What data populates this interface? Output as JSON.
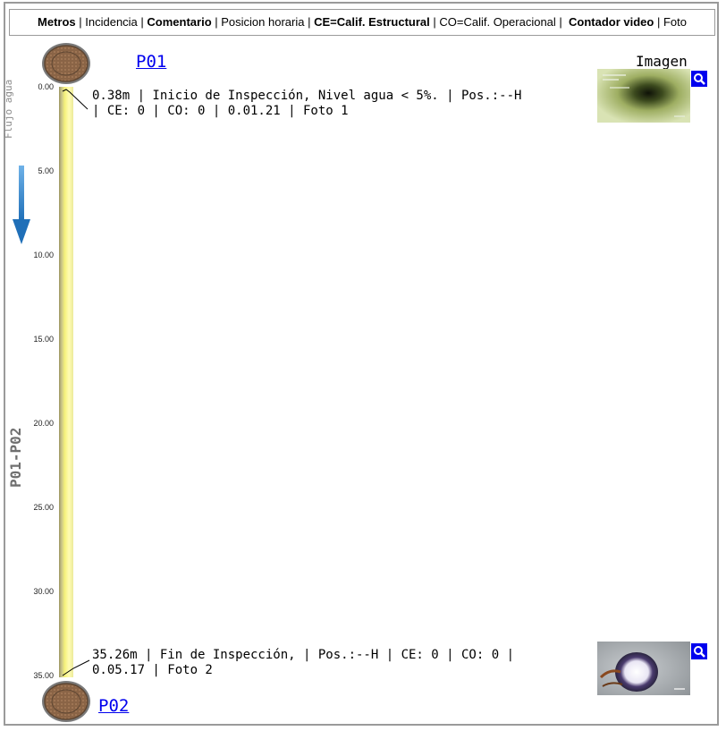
{
  "legend": {
    "metros": "Metros",
    "sep1": " | ",
    "incidencia": "Incidencia",
    "sep2": " | ",
    "comentario": "Comentario",
    "sep3": " | ",
    "posicion": "Posicion horaria",
    "sep4": " | ",
    "ce": "CE=Calif. Estructural",
    "sep5": " | ",
    "co": "CO=Calif. Operacional",
    "sep6": " |  ",
    "contador": "Contador video",
    "sep7": " | ",
    "foto": "Foto"
  },
  "imagen_header": "Imagen",
  "nodes": {
    "start": "P01",
    "end": "P02"
  },
  "flow_label": "Flujo agua",
  "pipe_label": "P01-P02",
  "scale_ticks": [
    "0.00",
    "5.00",
    "10.00",
    "15.00",
    "20.00",
    "25.00",
    "30.00",
    "35.00"
  ],
  "observations": [
    {
      "line1": "0.38m | Inicio de Inspección, Nivel agua < 5%. | Pos.:--H",
      "line2": "| CE: 0 | CO: 0 | 0.01.21 | Foto 1",
      "meters": 0.38
    },
    {
      "line1": "35.26m | Fin de Inspección, | Pos.:--H | CE: 0 | CO: 0 |",
      "line2": "0.05.17 | Foto 2",
      "meters": 35.26
    }
  ],
  "colors": {
    "link": "#0000ee",
    "pipe": "#f5f17a",
    "flow_arrow": "#2a7fc9",
    "zoom_button": "#0000ee"
  }
}
